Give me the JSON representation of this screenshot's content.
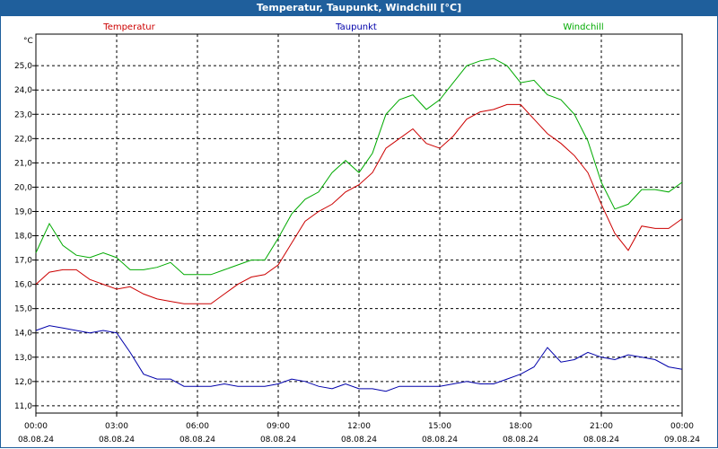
{
  "window": {
    "title": "Temperatur, Taupunkt, Windchill [°C]"
  },
  "chart_data": {
    "type": "line",
    "title": "Temperatur, Taupunkt, Windchill [°C]",
    "ylabel": "°C",
    "ylim": [
      10.7,
      26.3
    ],
    "grid": true,
    "legend": "top",
    "yticks": [
      "11,0",
      "12,0",
      "13,0",
      "14,0",
      "15,0",
      "16,0",
      "17,0",
      "18,0",
      "19,0",
      "20,0",
      "21,0",
      "22,0",
      "23,0",
      "24,0",
      "25,0"
    ],
    "ytick_values": [
      11,
      12,
      13,
      14,
      15,
      16,
      17,
      18,
      19,
      20,
      21,
      22,
      23,
      24,
      25
    ],
    "xticks": [
      {
        "time": "00:00",
        "date": "08.08.24"
      },
      {
        "time": "03:00",
        "date": "08.08.24"
      },
      {
        "time": "06:00",
        "date": "08.08.24"
      },
      {
        "time": "09:00",
        "date": "08.08.24"
      },
      {
        "time": "12:00",
        "date": "08.08.24"
      },
      {
        "time": "15:00",
        "date": "08.08.24"
      },
      {
        "time": "18:00",
        "date": "08.08.24"
      },
      {
        "time": "21:00",
        "date": "08.08.24"
      },
      {
        "time": "00:00",
        "date": "09.08.24"
      }
    ],
    "x_hours": [
      0,
      0.5,
      1,
      1.5,
      2,
      2.5,
      3,
      3.5,
      4,
      4.5,
      5,
      5.5,
      6,
      6.5,
      7,
      7.5,
      8,
      8.5,
      9,
      9.5,
      10,
      10.5,
      11,
      11.5,
      12,
      12.5,
      13,
      13.5,
      14,
      14.5,
      15,
      15.5,
      16,
      16.5,
      17,
      17.5,
      18,
      18.5,
      19,
      19.5,
      20,
      20.5,
      21,
      21.5,
      22,
      22.5,
      23,
      23.5,
      24
    ],
    "series": [
      {
        "name": "Temperatur",
        "color": "#cc0000",
        "values": [
          16.0,
          16.5,
          16.6,
          16.6,
          16.2,
          16.0,
          15.8,
          15.9,
          15.6,
          15.4,
          15.3,
          15.2,
          15.2,
          15.2,
          15.6,
          16.0,
          16.3,
          16.4,
          16.8,
          17.7,
          18.6,
          19.0,
          19.3,
          19.8,
          20.1,
          20.6,
          21.6,
          22.0,
          22.4,
          21.8,
          21.6,
          22.1,
          22.8,
          23.1,
          23.2,
          23.4,
          23.4,
          22.8,
          22.2,
          21.8,
          21.3,
          20.6,
          19.3,
          18.1,
          17.4,
          18.4,
          18.3,
          18.3,
          18.7
        ]
      },
      {
        "name": "Taupunkt",
        "color": "#0000aa",
        "values": [
          14.1,
          14.3,
          14.2,
          14.1,
          14.0,
          14.1,
          14.0,
          13.2,
          12.3,
          12.1,
          12.1,
          11.8,
          11.8,
          11.8,
          11.9,
          11.8,
          11.8,
          11.8,
          11.9,
          12.1,
          12.0,
          11.8,
          11.7,
          11.9,
          11.7,
          11.7,
          11.6,
          11.8,
          11.8,
          11.8,
          11.8,
          11.9,
          12.0,
          11.9,
          11.9,
          12.1,
          12.3,
          12.6,
          13.4,
          12.8,
          12.9,
          13.2,
          13.0,
          12.9,
          13.1,
          13.0,
          12.9,
          12.6,
          12.5
        ]
      },
      {
        "name": "Windchill",
        "color": "#00aa00",
        "values": [
          17.3,
          18.5,
          17.6,
          17.2,
          17.1,
          17.3,
          17.1,
          16.6,
          16.6,
          16.7,
          16.9,
          16.4,
          16.4,
          16.4,
          16.6,
          16.8,
          17.0,
          17.0,
          17.9,
          18.9,
          19.5,
          19.8,
          20.6,
          21.1,
          20.6,
          21.4,
          23.0,
          23.6,
          23.8,
          23.2,
          23.6,
          24.3,
          25.0,
          25.2,
          25.3,
          25.0,
          24.3,
          24.4,
          23.8,
          23.6,
          23.0,
          21.9,
          20.2,
          19.1,
          19.3,
          19.9,
          19.9,
          19.8,
          20.2
        ]
      }
    ]
  }
}
